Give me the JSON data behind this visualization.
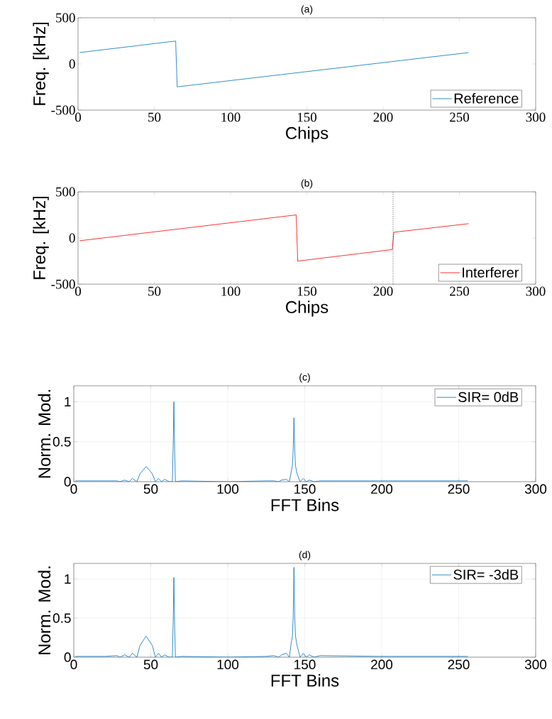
{
  "chart_data": [
    {
      "type": "line",
      "title": "(a)",
      "xlabel": "Chips",
      "ylabel": "Freq. [kHz]",
      "xlim": [
        0,
        300
      ],
      "ylim": [
        -500,
        500
      ],
      "xticks": [
        0,
        50,
        100,
        150,
        200,
        250,
        300
      ],
      "yticks": [
        -500,
        0,
        500
      ],
      "legend": "bottom right",
      "grid": false,
      "series": [
        {
          "name": "Reference",
          "color": "#0072bd",
          "x": [
            1,
            64,
            65,
            256
          ],
          "values": [
            123,
            248,
            -248,
            123
          ]
        }
      ]
    },
    {
      "type": "line",
      "title": "(b)",
      "xlabel": "Chips",
      "ylabel": "Freq. [kHz]",
      "xlim": [
        0,
        300
      ],
      "ylim": [
        -500,
        500
      ],
      "xticks": [
        0,
        50,
        100,
        150,
        200,
        250,
        300
      ],
      "yticks": [
        -500,
        0,
        500
      ],
      "legend": "bottom right",
      "grid": false,
      "ref_lines": [
        {
          "axis": "x",
          "value": 206.5,
          "color": "#000000",
          "line_style": "dotted"
        }
      ],
      "series": [
        {
          "name": "Interferer",
          "color": "#ff0000",
          "x": [
            1,
            143,
            144,
            206,
            207,
            256
          ],
          "values": [
            -30,
            250,
            -250,
            -125,
            62,
            155
          ]
        }
      ]
    },
    {
      "type": "line",
      "title": "(c)",
      "xlabel": "FFT Bins",
      "ylabel": "Norm. Mod.",
      "xlim": [
        0,
        300
      ],
      "ylim": [
        0,
        1.2
      ],
      "xticks": [
        0,
        50,
        100,
        150,
        200,
        250,
        300
      ],
      "yticks": [
        0,
        0.5,
        1
      ],
      "legend": "top right",
      "grid": true,
      "series": [
        {
          "name": "SIR= 0dB",
          "color": "#0072bd",
          "x": [
            1,
            20,
            28,
            30,
            33,
            36,
            38,
            41,
            43,
            47,
            51,
            53,
            55,
            57,
            59,
            62,
            64,
            64.5,
            65,
            65.5,
            66,
            70,
            100,
            125,
            130,
            133,
            135,
            138,
            140,
            141,
            142,
            142.5,
            143,
            143.5,
            144,
            145,
            147,
            149,
            151,
            153,
            156,
            160,
            200,
            256
          ],
          "values": [
            0.01,
            0.01,
            0.01,
            0,
            0.02,
            0,
            0.04,
            0,
            0.1,
            0.19,
            0.1,
            0,
            0.04,
            0,
            0.03,
            0,
            0,
            0.4,
            1.0,
            0.4,
            0,
            0.01,
            0,
            0.01,
            0.01,
            0,
            0.02,
            0.03,
            0,
            0.1,
            0.2,
            0.4,
            0.8,
            0.4,
            0.2,
            0.1,
            0,
            0.04,
            0,
            0.02,
            0,
            0.01,
            0.01,
            0.01
          ]
        }
      ]
    },
    {
      "type": "line",
      "title": "(d)",
      "xlabel": "FFT Bins",
      "ylabel": "Norm. Mod.",
      "xlim": [
        0,
        300
      ],
      "ylim": [
        0,
        1.2
      ],
      "xticks": [
        0,
        50,
        100,
        150,
        200,
        250,
        300
      ],
      "yticks": [
        0,
        0.5,
        1
      ],
      "legend": "top right",
      "grid": true,
      "series": [
        {
          "name": "SIR= -3dB",
          "color": "#0072bd",
          "x": [
            1,
            20,
            28,
            30,
            33,
            36,
            38,
            41,
            43,
            47,
            51,
            53,
            55,
            57,
            59,
            62,
            64,
            64.5,
            65,
            65.5,
            66,
            70,
            100,
            125,
            130,
            133,
            135,
            138,
            140,
            141,
            142,
            142.5,
            143,
            143.5,
            144,
            145,
            147,
            149,
            151,
            153,
            156,
            160,
            200,
            256
          ],
          "values": [
            0.01,
            0.01,
            0.02,
            0,
            0.03,
            0,
            0.05,
            0,
            0.15,
            0.27,
            0.15,
            0,
            0.05,
            0,
            0.03,
            0,
            0,
            0.4,
            1.02,
            0.4,
            0,
            0.01,
            0,
            0.01,
            0.02,
            0,
            0.03,
            0.05,
            0,
            0.15,
            0.27,
            0.5,
            1.15,
            0.5,
            0.27,
            0.15,
            0,
            0.05,
            0,
            0.03,
            0,
            0.02,
            0.01,
            0.01
          ]
        }
      ]
    }
  ]
}
